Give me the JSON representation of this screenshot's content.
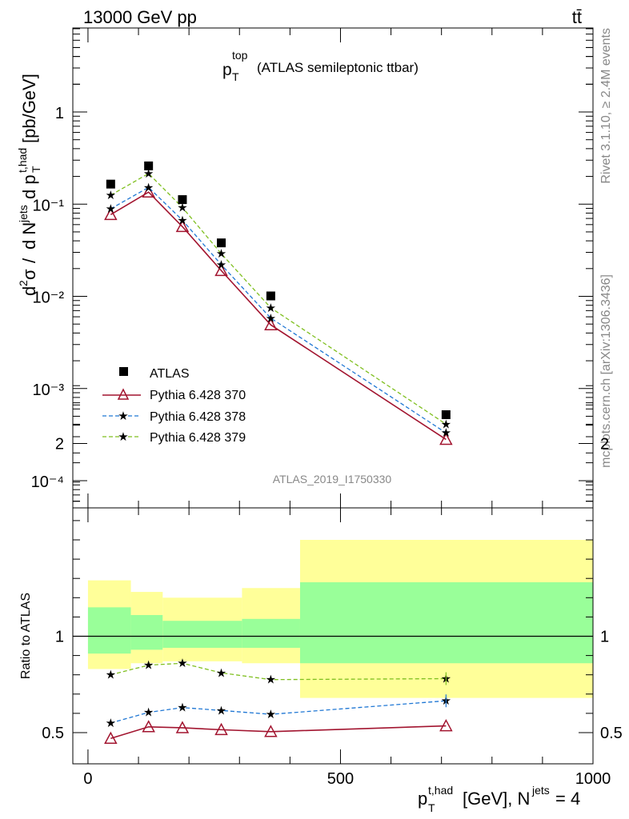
{
  "header": {
    "energy": "13000 GeV pp",
    "process": "tt̄",
    "rivet": "Rivet 3.1.10, ≥ 2.4M events",
    "mcplots": "mcplots.cern.ch [arXiv:1306.3436]",
    "analysis": "ATLAS_2019_I1750330"
  },
  "colors": {
    "data": "#000000",
    "p370": "#a2142f",
    "p378": "#1f77d4",
    "p379": "#7fbf1f",
    "band_inner": "#99ff99",
    "band_outer": "#ffff99"
  },
  "chart_data": [
    {
      "type": "line",
      "title": "p_T^top (ATLAS semileptonic ttbar)",
      "ylabel": "d²σ / d N^jets d p_T^t,had [pb/GeV]",
      "yscale": "log",
      "xlim": [
        -30,
        1000
      ],
      "ylim": [
        5e-05,
        5
      ],
      "y_tick_labels": [
        "1",
        "10⁻¹",
        "10⁻²",
        "10⁻³",
        "10⁻⁴"
      ],
      "legend_position": "lower-left",
      "x": [
        45,
        120,
        187,
        264,
        362,
        709
      ],
      "series": [
        {
          "name": "ATLAS",
          "marker": "square",
          "values": [
            0.165,
            0.26,
            0.112,
            0.038,
            0.0101,
            0.00052
          ]
        },
        {
          "name": "Pythia 6.428 370",
          "marker": "open-triangle",
          "line": "solid",
          "values": [
            0.077,
            0.135,
            0.057,
            0.019,
            0.0049,
            0.00028
          ]
        },
        {
          "name": "Pythia 6.428 378",
          "marker": "star",
          "line": "dashed",
          "values": [
            0.089,
            0.152,
            0.067,
            0.022,
            0.0058,
            0.00033
          ]
        },
        {
          "name": "Pythia 6.428 379",
          "marker": "star",
          "line": "dashed",
          "values": [
            0.125,
            0.215,
            0.092,
            0.029,
            0.0075,
            0.00041
          ]
        }
      ]
    },
    {
      "type": "line",
      "ylabel": "Ratio to ATLAS",
      "xlabel": "p_T^t,had [GeV], N^jets = 4",
      "xlim": [
        -30,
        1000
      ],
      "ylim": [
        0.4,
        2.4
      ],
      "x_ticks": [
        0,
        500,
        1000
      ],
      "y_ticks": [
        0.5,
        1,
        2
      ],
      "bands": [
        {
          "x0": 0,
          "x1": 85,
          "inner": [
            0.91,
            1.15
          ],
          "outer": [
            0.83,
            1.29
          ]
        },
        {
          "x0": 85,
          "x1": 148,
          "inner": [
            0.93,
            1.11
          ],
          "outer": [
            0.86,
            1.23
          ]
        },
        {
          "x0": 148,
          "x1": 305,
          "inner": [
            0.94,
            1.08
          ],
          "outer": [
            0.87,
            1.2
          ]
        },
        {
          "x0": 305,
          "x1": 420,
          "inner": [
            0.94,
            1.09
          ],
          "outer": [
            0.86,
            1.25
          ]
        },
        {
          "x0": 420,
          "x1": 1000,
          "inner": [
            0.86,
            1.28
          ],
          "outer": [
            0.68,
            1.5
          ]
        }
      ],
      "x": [
        45,
        120,
        187,
        264,
        362,
        709
      ],
      "series": [
        {
          "name": "Pythia 6.428 370",
          "values": [
            0.47,
            0.53,
            0.525,
            0.515,
            0.505,
            0.535
          ]
        },
        {
          "name": "Pythia 6.428 378",
          "values": [
            0.55,
            0.605,
            0.63,
            0.615,
            0.595,
            0.665
          ]
        },
        {
          "name": "Pythia 6.428 379",
          "values": [
            0.8,
            0.85,
            0.86,
            0.81,
            0.775,
            0.78
          ]
        }
      ]
    }
  ]
}
